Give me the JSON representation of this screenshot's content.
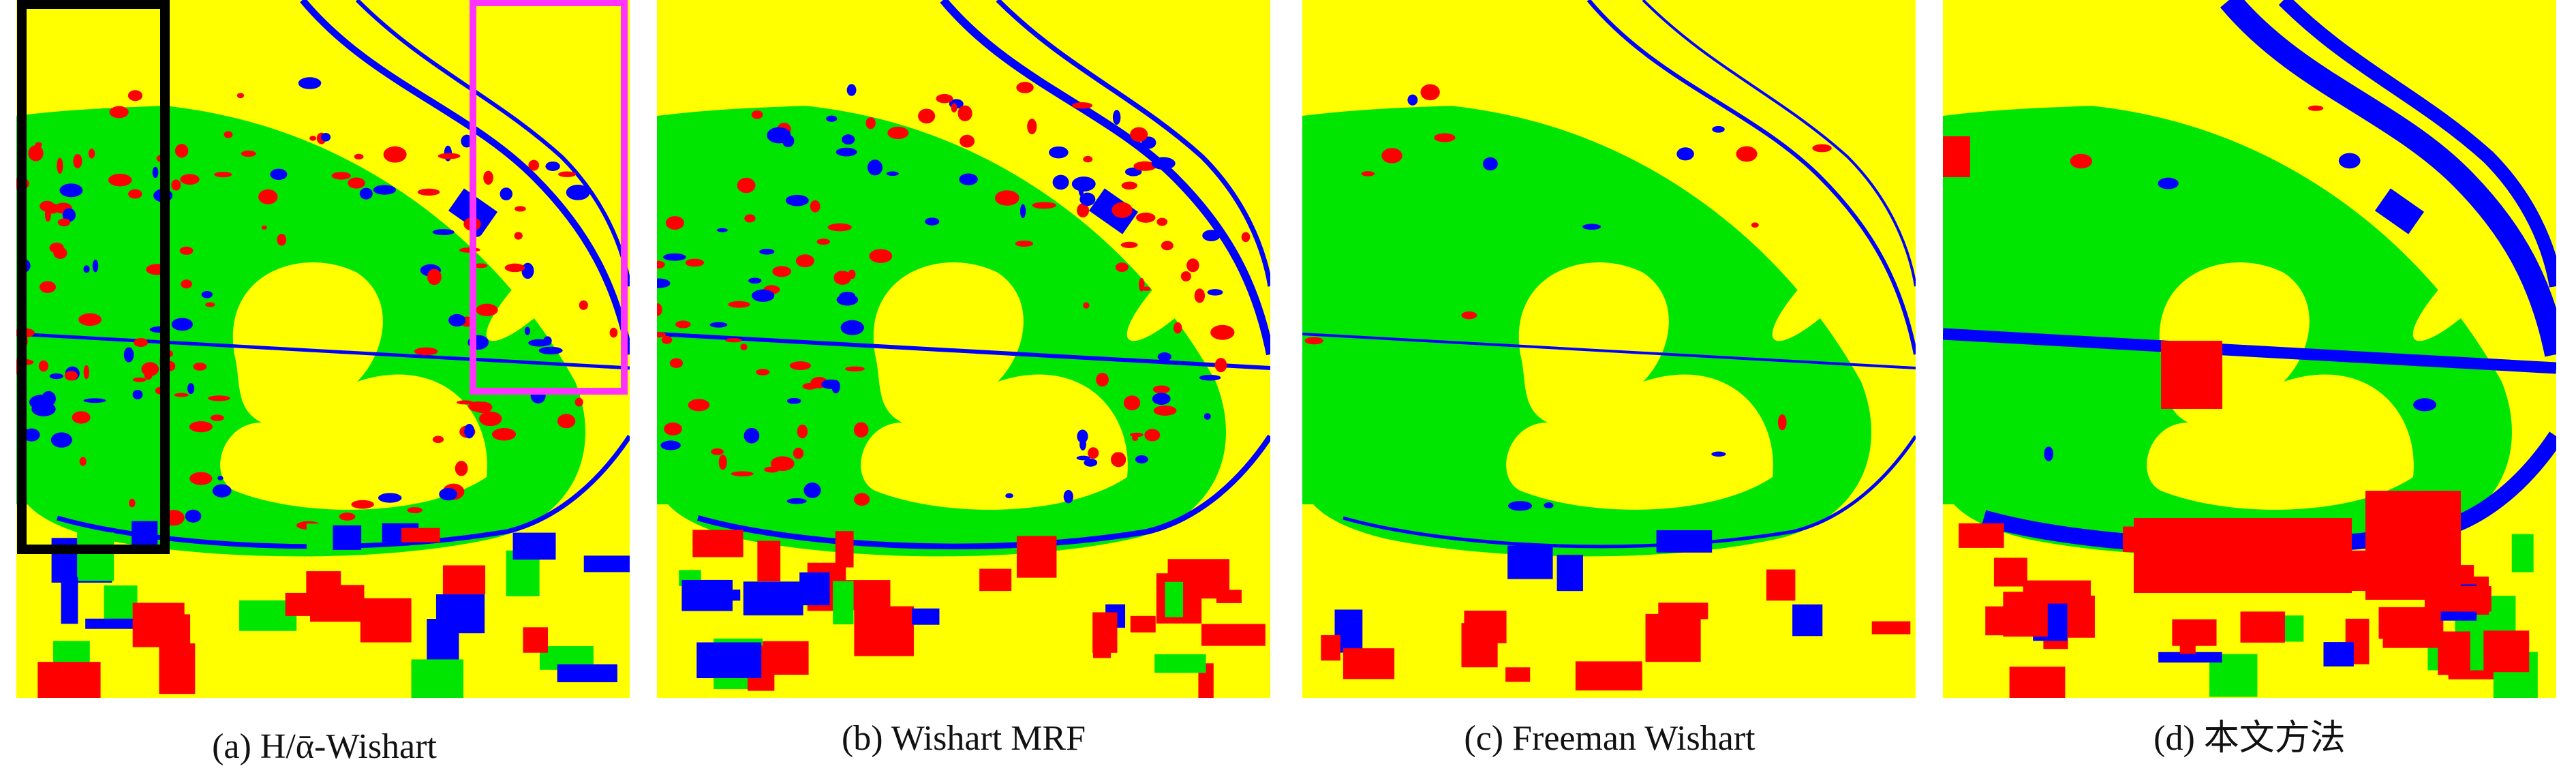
{
  "panels": [
    {
      "caption": "(a) H/ᾱ-Wishart"
    },
    {
      "caption": "(b) Wishart MRF"
    },
    {
      "caption": "(c) Freeman Wishart"
    },
    {
      "caption": "(d) 本文方法"
    }
  ]
}
